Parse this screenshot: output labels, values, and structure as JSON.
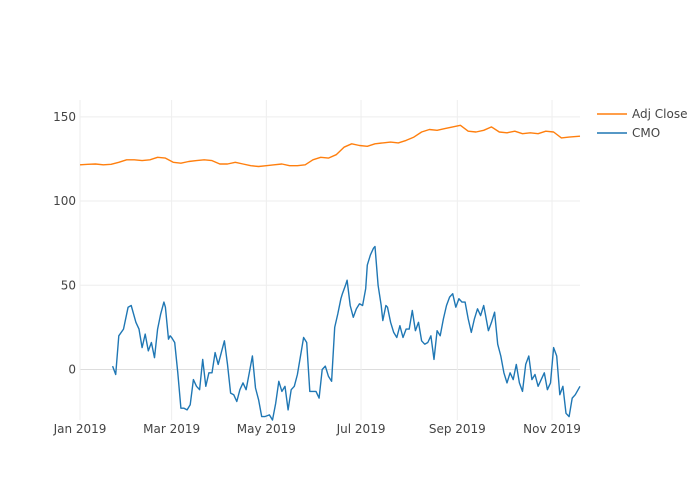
{
  "chart_data": {
    "type": "line",
    "x_ticks": [
      "Jan 2019",
      "Mar 2019",
      "May 2019",
      "Jul 2019",
      "Sep 2019",
      "Nov 2019"
    ],
    "x_tick_dates": [
      "2019-01-01",
      "2019-03-01",
      "2019-05-01",
      "2019-07-01",
      "2019-09-01",
      "2019-11-01"
    ],
    "x_range": [
      "2019-01-01",
      "2019-11-19"
    ],
    "y_ticks": [
      0,
      50,
      100,
      150
    ],
    "ylim": [
      -30,
      160
    ],
    "grid": true,
    "legend_position": "top-right",
    "series": [
      {
        "name": "Adj Close",
        "color": "#ff7f0e",
        "points": [
          [
            "2019-01-01",
            121.5
          ],
          [
            "2019-01-06",
            121.8
          ],
          [
            "2019-01-11",
            122.0
          ],
          [
            "2019-01-16",
            121.5
          ],
          [
            "2019-01-21",
            121.8
          ],
          [
            "2019-01-26",
            123.0
          ],
          [
            "2019-01-31",
            124.5
          ],
          [
            "2019-02-05",
            124.5
          ],
          [
            "2019-02-10",
            124.0
          ],
          [
            "2019-02-15",
            124.5
          ],
          [
            "2019-02-20",
            126.0
          ],
          [
            "2019-02-25",
            125.5
          ],
          [
            "2019-03-02",
            123.0
          ],
          [
            "2019-03-07",
            122.5
          ],
          [
            "2019-03-12",
            123.5
          ],
          [
            "2019-03-17",
            124.0
          ],
          [
            "2019-03-22",
            124.5
          ],
          [
            "2019-03-27",
            124.0
          ],
          [
            "2019-04-01",
            122.0
          ],
          [
            "2019-04-06",
            122.0
          ],
          [
            "2019-04-11",
            123.0
          ],
          [
            "2019-04-16",
            122.0
          ],
          [
            "2019-04-21",
            121.0
          ],
          [
            "2019-04-26",
            120.5
          ],
          [
            "2019-05-01",
            121.0
          ],
          [
            "2019-05-06",
            121.5
          ],
          [
            "2019-05-11",
            122.0
          ],
          [
            "2019-05-16",
            121.0
          ],
          [
            "2019-05-21",
            121.0
          ],
          [
            "2019-05-26",
            121.5
          ],
          [
            "2019-05-31",
            124.5
          ],
          [
            "2019-06-05",
            126.0
          ],
          [
            "2019-06-10",
            125.5
          ],
          [
            "2019-06-15",
            127.5
          ],
          [
            "2019-06-20",
            132.0
          ],
          [
            "2019-06-25",
            134.0
          ],
          [
            "2019-06-30",
            133.0
          ],
          [
            "2019-07-05",
            132.5
          ],
          [
            "2019-07-10",
            134.0
          ],
          [
            "2019-07-15",
            134.5
          ],
          [
            "2019-07-20",
            135.0
          ],
          [
            "2019-07-25",
            134.5
          ],
          [
            "2019-07-30",
            136.0
          ],
          [
            "2019-08-04",
            138.0
          ],
          [
            "2019-08-09",
            141.0
          ],
          [
            "2019-08-14",
            142.5
          ],
          [
            "2019-08-19",
            142.0
          ],
          [
            "2019-08-24",
            143.0
          ],
          [
            "2019-08-29",
            144.0
          ],
          [
            "2019-09-03",
            145.0
          ],
          [
            "2019-09-08",
            141.5
          ],
          [
            "2019-09-13",
            141.0
          ],
          [
            "2019-09-18",
            142.0
          ],
          [
            "2019-09-23",
            144.0
          ],
          [
            "2019-09-28",
            141.0
          ],
          [
            "2019-10-03",
            140.5
          ],
          [
            "2019-10-08",
            141.5
          ],
          [
            "2019-10-13",
            140.0
          ],
          [
            "2019-10-18",
            140.5
          ],
          [
            "2019-10-23",
            140.0
          ],
          [
            "2019-10-28",
            141.5
          ],
          [
            "2019-11-02",
            141.0
          ],
          [
            "2019-11-07",
            137.5
          ],
          [
            "2019-11-12",
            138.0
          ],
          [
            "2019-11-19",
            138.5
          ]
        ]
      },
      {
        "name": "CMO",
        "color": "#1f77b4",
        "points": [
          [
            "2019-01-22",
            2
          ],
          [
            "2019-01-24",
            -3
          ],
          [
            "2019-01-26",
            20
          ],
          [
            "2019-01-29",
            24
          ],
          [
            "2019-02-01",
            37
          ],
          [
            "2019-02-03",
            38
          ],
          [
            "2019-02-06",
            28
          ],
          [
            "2019-02-08",
            24
          ],
          [
            "2019-02-10",
            13
          ],
          [
            "2019-02-12",
            21
          ],
          [
            "2019-02-14",
            11
          ],
          [
            "2019-02-16",
            16
          ],
          [
            "2019-02-18",
            7
          ],
          [
            "2019-02-20",
            24
          ],
          [
            "2019-02-22",
            33
          ],
          [
            "2019-02-24",
            40
          ],
          [
            "2019-02-25",
            37
          ],
          [
            "2019-02-27",
            18
          ],
          [
            "2019-02-28",
            20
          ],
          [
            "2019-03-01",
            19
          ],
          [
            "2019-03-03",
            16
          ],
          [
            "2019-03-05",
            -2
          ],
          [
            "2019-03-07",
            -23
          ],
          [
            "2019-03-09",
            -23
          ],
          [
            "2019-03-11",
            -24
          ],
          [
            "2019-03-13",
            -21
          ],
          [
            "2019-03-15",
            -6
          ],
          [
            "2019-03-17",
            -10
          ],
          [
            "2019-03-19",
            -12
          ],
          [
            "2019-03-21",
            6
          ],
          [
            "2019-03-23",
            -10
          ],
          [
            "2019-03-25",
            -2
          ],
          [
            "2019-03-27",
            -2
          ],
          [
            "2019-03-29",
            10
          ],
          [
            "2019-03-31",
            3
          ],
          [
            "2019-04-02",
            10
          ],
          [
            "2019-04-04",
            17
          ],
          [
            "2019-04-06",
            3
          ],
          [
            "2019-04-08",
            -14
          ],
          [
            "2019-04-10",
            -15
          ],
          [
            "2019-04-12",
            -19
          ],
          [
            "2019-04-14",
            -12
          ],
          [
            "2019-04-16",
            -8
          ],
          [
            "2019-04-18",
            -12
          ],
          [
            "2019-04-20",
            -2
          ],
          [
            "2019-04-22",
            8
          ],
          [
            "2019-04-24",
            -11
          ],
          [
            "2019-04-26",
            -18
          ],
          [
            "2019-04-28",
            -28
          ],
          [
            "2019-04-30",
            -28
          ],
          [
            "2019-05-03",
            -27
          ],
          [
            "2019-05-05",
            -30
          ],
          [
            "2019-05-07",
            -20
          ],
          [
            "2019-05-09",
            -7
          ],
          [
            "2019-05-11",
            -13
          ],
          [
            "2019-05-13",
            -10
          ],
          [
            "2019-05-15",
            -24
          ],
          [
            "2019-05-17",
            -12
          ],
          [
            "2019-05-19",
            -10
          ],
          [
            "2019-05-21",
            -3
          ],
          [
            "2019-05-23",
            8
          ],
          [
            "2019-05-25",
            19
          ],
          [
            "2019-05-27",
            16
          ],
          [
            "2019-05-29",
            -13
          ],
          [
            "2019-05-31",
            -13
          ],
          [
            "2019-06-02",
            -13
          ],
          [
            "2019-06-04",
            -17
          ],
          [
            "2019-06-06",
            0
          ],
          [
            "2019-06-08",
            2
          ],
          [
            "2019-06-10",
            -4
          ],
          [
            "2019-06-12",
            -7
          ],
          [
            "2019-06-14",
            25
          ],
          [
            "2019-06-16",
            33
          ],
          [
            "2019-06-18",
            42
          ],
          [
            "2019-06-19",
            45
          ],
          [
            "2019-06-21",
            50
          ],
          [
            "2019-06-22",
            53
          ],
          [
            "2019-06-24",
            38
          ],
          [
            "2019-06-26",
            31
          ],
          [
            "2019-06-28",
            36
          ],
          [
            "2019-06-30",
            39
          ],
          [
            "2019-07-02",
            38
          ],
          [
            "2019-07-04",
            48
          ],
          [
            "2019-07-05",
            62
          ],
          [
            "2019-07-07",
            68
          ],
          [
            "2019-07-09",
            72
          ],
          [
            "2019-07-10",
            73
          ],
          [
            "2019-07-12",
            50
          ],
          [
            "2019-07-14",
            38
          ],
          [
            "2019-07-15",
            29
          ],
          [
            "2019-07-17",
            38
          ],
          [
            "2019-07-18",
            37
          ],
          [
            "2019-07-20",
            28
          ],
          [
            "2019-07-22",
            22
          ],
          [
            "2019-07-24",
            19
          ],
          [
            "2019-07-26",
            26
          ],
          [
            "2019-07-28",
            19
          ],
          [
            "2019-07-30",
            24
          ],
          [
            "2019-08-01",
            24
          ],
          [
            "2019-08-03",
            35
          ],
          [
            "2019-08-05",
            23
          ],
          [
            "2019-08-07",
            28
          ],
          [
            "2019-08-09",
            17
          ],
          [
            "2019-08-11",
            15
          ],
          [
            "2019-08-13",
            16
          ],
          [
            "2019-08-15",
            20
          ],
          [
            "2019-08-17",
            6
          ],
          [
            "2019-08-19",
            23
          ],
          [
            "2019-08-21",
            20
          ],
          [
            "2019-08-23",
            30
          ],
          [
            "2019-08-25",
            38
          ],
          [
            "2019-08-27",
            43
          ],
          [
            "2019-08-29",
            45
          ],
          [
            "2019-08-31",
            37
          ],
          [
            "2019-09-02",
            42
          ],
          [
            "2019-09-04",
            40
          ],
          [
            "2019-09-06",
            40
          ],
          [
            "2019-09-08",
            30
          ],
          [
            "2019-09-10",
            22
          ],
          [
            "2019-09-12",
            30
          ],
          [
            "2019-09-14",
            36
          ],
          [
            "2019-09-16",
            32
          ],
          [
            "2019-09-18",
            38
          ],
          [
            "2019-09-19",
            33
          ],
          [
            "2019-09-21",
            23
          ],
          [
            "2019-09-23",
            28
          ],
          [
            "2019-09-25",
            34
          ],
          [
            "2019-09-27",
            15
          ],
          [
            "2019-09-29",
            8
          ],
          [
            "2019-10-01",
            -2
          ],
          [
            "2019-10-03",
            -8
          ],
          [
            "2019-10-05",
            -2
          ],
          [
            "2019-10-07",
            -6
          ],
          [
            "2019-10-09",
            3
          ],
          [
            "2019-10-11",
            -8
          ],
          [
            "2019-10-13",
            -13
          ],
          [
            "2019-10-15",
            3
          ],
          [
            "2019-10-17",
            8
          ],
          [
            "2019-10-19",
            -6
          ],
          [
            "2019-10-21",
            -3
          ],
          [
            "2019-10-23",
            -10
          ],
          [
            "2019-10-25",
            -6
          ],
          [
            "2019-10-27",
            -2
          ],
          [
            "2019-10-29",
            -12
          ],
          [
            "2019-10-31",
            -8
          ],
          [
            "2019-11-02",
            13
          ],
          [
            "2019-11-04",
            8
          ],
          [
            "2019-11-06",
            -15
          ],
          [
            "2019-11-08",
            -10
          ],
          [
            "2019-11-10",
            -26
          ],
          [
            "2019-11-12",
            -28
          ],
          [
            "2019-11-14",
            -17
          ],
          [
            "2019-11-16",
            -15
          ],
          [
            "2019-11-19",
            -10
          ]
        ]
      }
    ]
  }
}
